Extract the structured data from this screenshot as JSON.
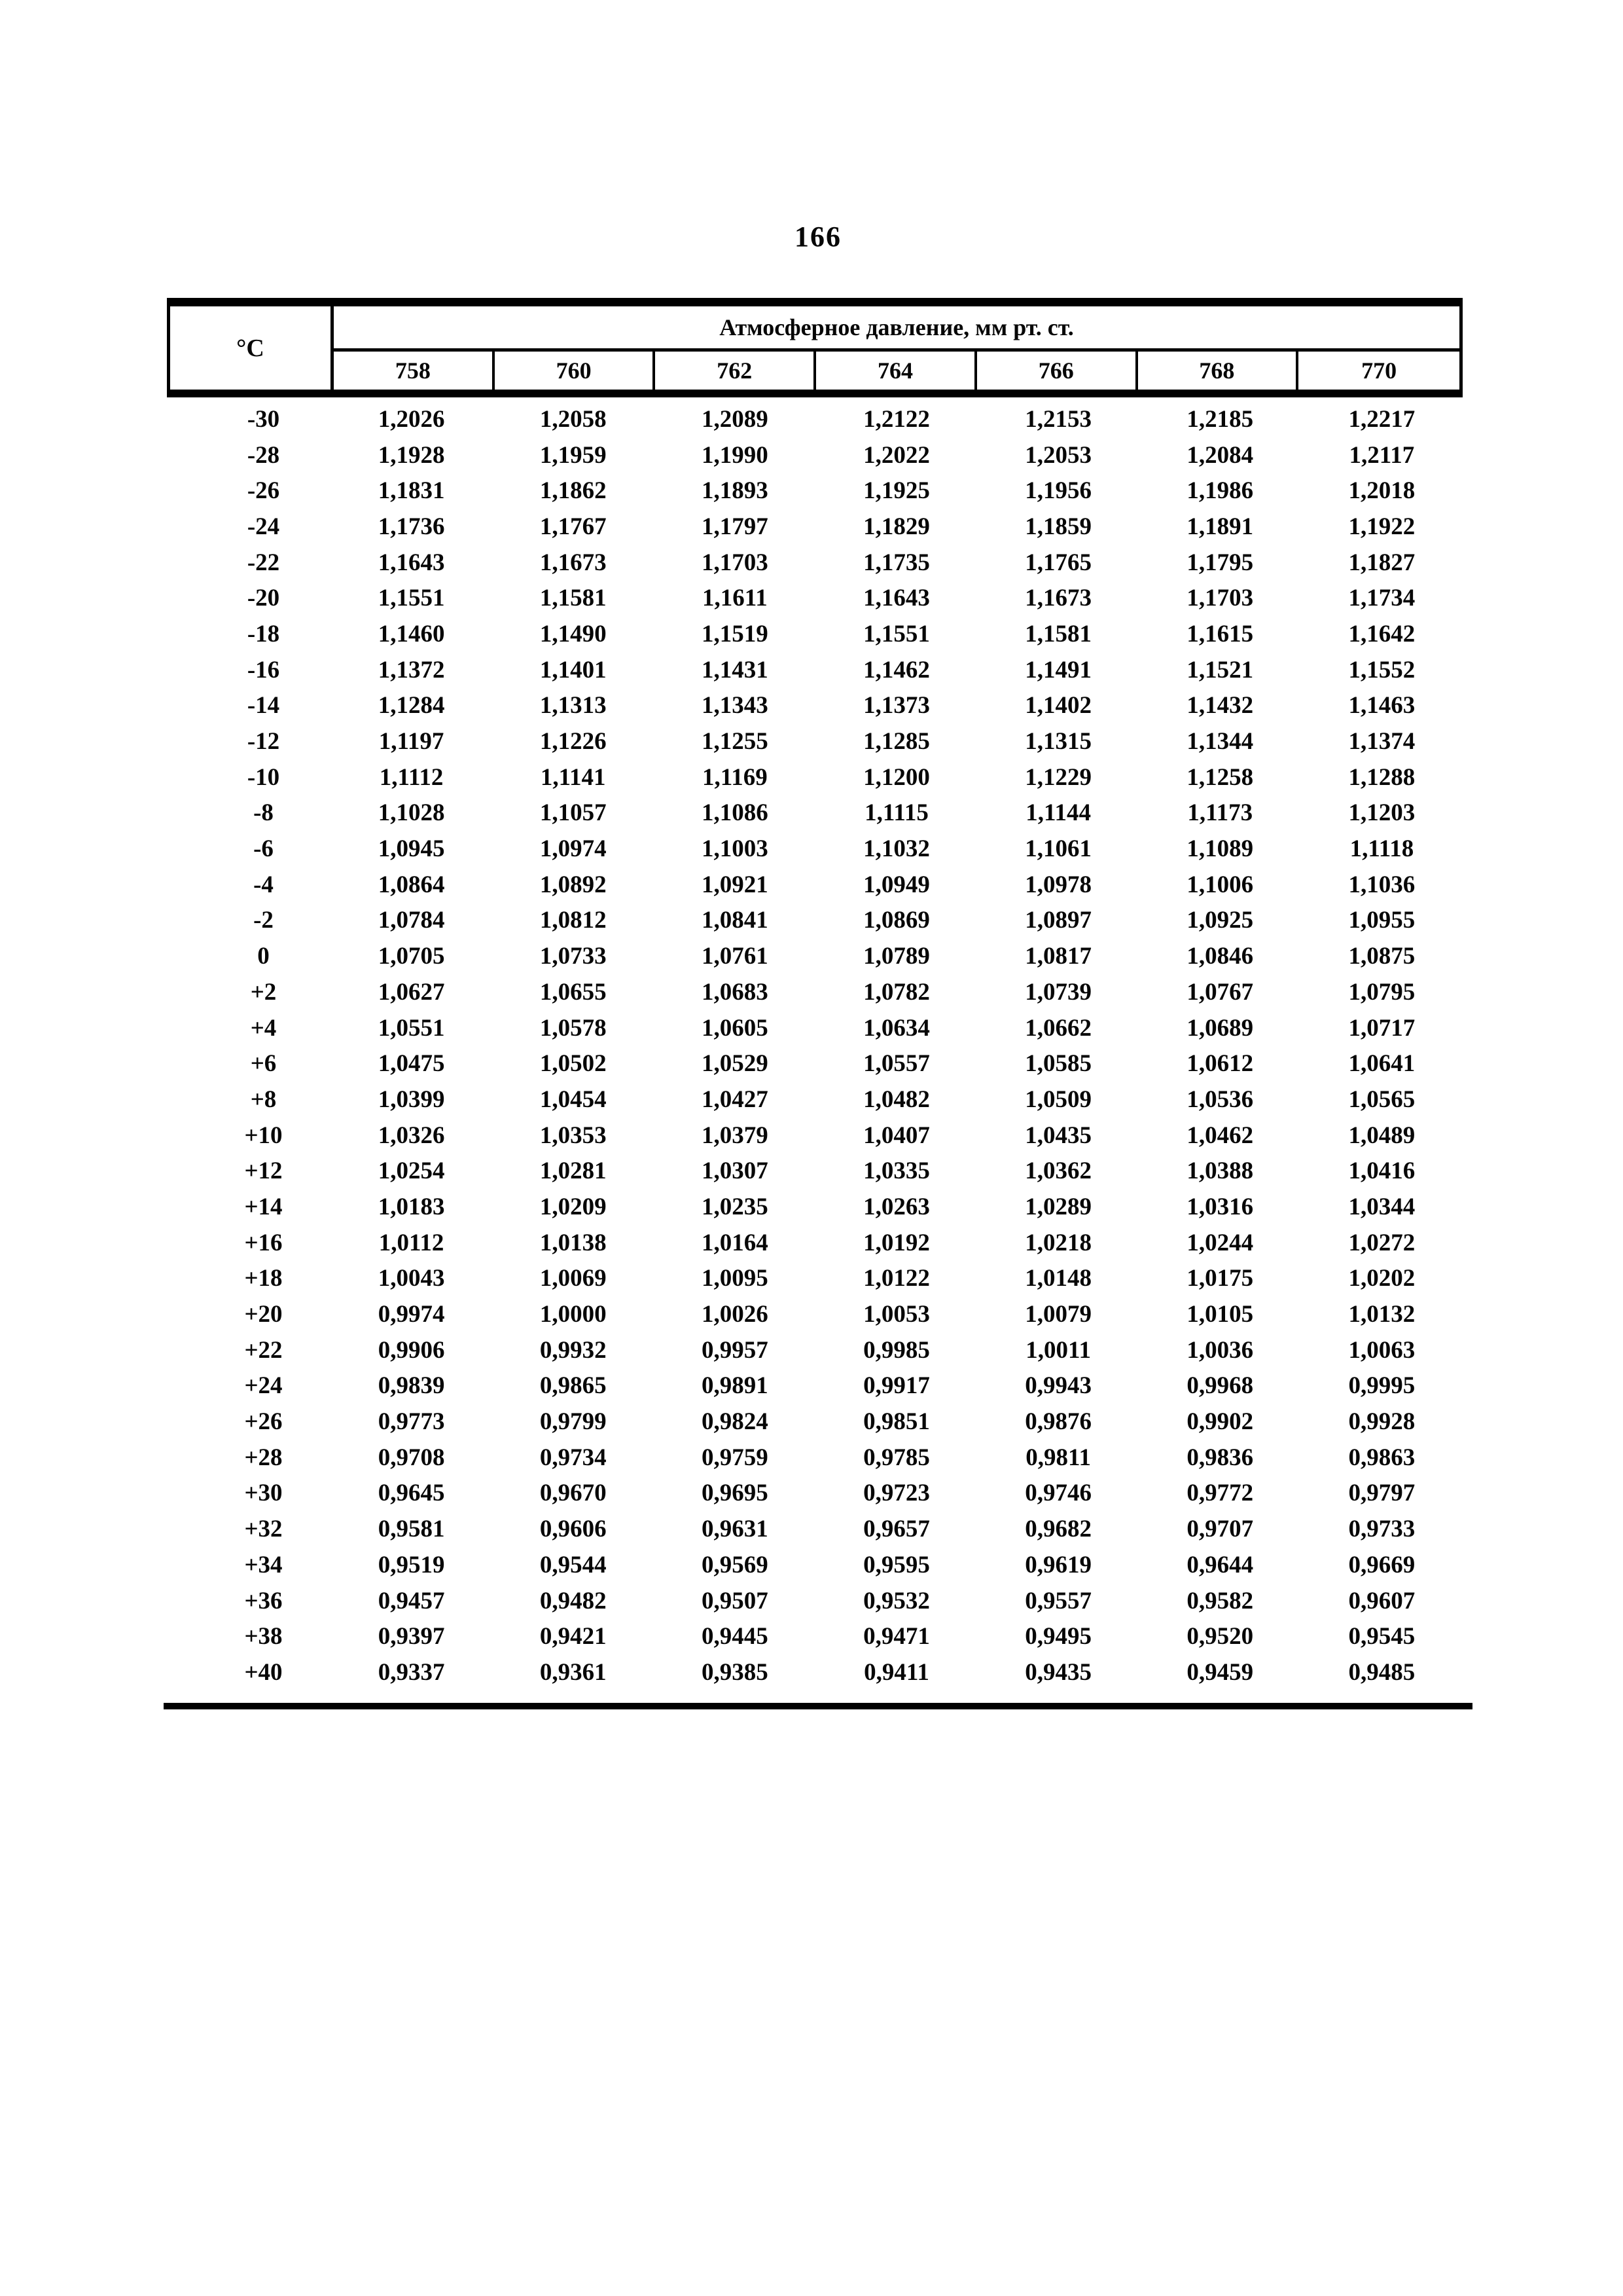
{
  "page_number": "166",
  "table": {
    "temp_header": "°C",
    "pressure_header": "Атмосферное давление, мм рт. ст.",
    "pressure_columns": [
      "758",
      "760",
      "762",
      "764",
      "766",
      "768",
      "770"
    ],
    "rows": [
      {
        "temp": "-30",
        "values": [
          "1,2026",
          "1,2058",
          "1,2089",
          "1,2122",
          "1,2153",
          "1,2185",
          "1,2217"
        ]
      },
      {
        "temp": "-28",
        "values": [
          "1,1928",
          "1,1959",
          "1,1990",
          "1,2022",
          "1,2053",
          "1,2084",
          "1,2117"
        ]
      },
      {
        "temp": "-26",
        "values": [
          "1,1831",
          "1,1862",
          "1,1893",
          "1,1925",
          "1,1956",
          "1,1986",
          "1,2018"
        ]
      },
      {
        "temp": "-24",
        "values": [
          "1,1736",
          "1,1767",
          "1,1797",
          "1,1829",
          "1,1859",
          "1,1891",
          "1,1922"
        ]
      },
      {
        "temp": "-22",
        "values": [
          "1,1643",
          "1,1673",
          "1,1703",
          "1,1735",
          "1,1765",
          "1,1795",
          "1,1827"
        ]
      },
      {
        "temp": "-20",
        "values": [
          "1,1551",
          "1,1581",
          "1,1611",
          "1,1643",
          "1,1673",
          "1,1703",
          "1,1734"
        ]
      },
      {
        "temp": "-18",
        "values": [
          "1,1460",
          "1,1490",
          "1,1519",
          "1,1551",
          "1,1581",
          "1,1615",
          "1,1642"
        ]
      },
      {
        "temp": "-16",
        "values": [
          "1,1372",
          "1,1401",
          "1,1431",
          "1,1462",
          "1,1491",
          "1,1521",
          "1,1552"
        ]
      },
      {
        "temp": "-14",
        "values": [
          "1,1284",
          "1,1313",
          "1,1343",
          "1,1373",
          "1,1402",
          "1,1432",
          "1,1463"
        ]
      },
      {
        "temp": "-12",
        "values": [
          "1,1197",
          "1,1226",
          "1,1255",
          "1,1285",
          "1,1315",
          "1,1344",
          "1,1374"
        ]
      },
      {
        "temp": "-10",
        "values": [
          "1,1112",
          "1,1141",
          "1,1169",
          "1,1200",
          "1,1229",
          "1,1258",
          "1,1288"
        ]
      },
      {
        "temp": "-8",
        "values": [
          "1,1028",
          "1,1057",
          "1,1086",
          "1,1115",
          "1,1144",
          "1,1173",
          "1,1203"
        ]
      },
      {
        "temp": "-6",
        "values": [
          "1,0945",
          "1,0974",
          "1,1003",
          "1,1032",
          "1,1061",
          "1,1089",
          "1,1118"
        ]
      },
      {
        "temp": "-4",
        "values": [
          "1,0864",
          "1,0892",
          "1,0921",
          "1,0949",
          "1,0978",
          "1,1006",
          "1,1036"
        ]
      },
      {
        "temp": "-2",
        "values": [
          "1,0784",
          "1,0812",
          "1,0841",
          "1,0869",
          "1,0897",
          "1,0925",
          "1,0955"
        ]
      },
      {
        "temp": "0",
        "values": [
          "1,0705",
          "1,0733",
          "1,0761",
          "1,0789",
          "1,0817",
          "1,0846",
          "1,0875"
        ]
      },
      {
        "temp": "+2",
        "values": [
          "1,0627",
          "1,0655",
          "1,0683",
          "1,0782",
          "1,0739",
          "1,0767",
          "1,0795"
        ]
      },
      {
        "temp": "+4",
        "values": [
          "1,0551",
          "1,0578",
          "1,0605",
          "1,0634",
          "1,0662",
          "1,0689",
          "1,0717"
        ]
      },
      {
        "temp": "+6",
        "values": [
          "1,0475",
          "1,0502",
          "1,0529",
          "1,0557",
          "1,0585",
          "1,0612",
          "1,0641"
        ]
      },
      {
        "temp": "+8",
        "values": [
          "1,0399",
          "1,0454",
          "1,0427",
          "1,0482",
          "1,0509",
          "1,0536",
          "1,0565"
        ]
      },
      {
        "temp": "+10",
        "values": [
          "1,0326",
          "1,0353",
          "1,0379",
          "1,0407",
          "1,0435",
          "1,0462",
          "1,0489"
        ]
      },
      {
        "temp": "+12",
        "values": [
          "1,0254",
          "1,0281",
          "1,0307",
          "1,0335",
          "1,0362",
          "1,0388",
          "1,0416"
        ]
      },
      {
        "temp": "+14",
        "values": [
          "1,0183",
          "1,0209",
          "1,0235",
          "1,0263",
          "1,0289",
          "1,0316",
          "1,0344"
        ]
      },
      {
        "temp": "+16",
        "values": [
          "1,0112",
          "1,0138",
          "1,0164",
          "1,0192",
          "1,0218",
          "1,0244",
          "1,0272"
        ]
      },
      {
        "temp": "+18",
        "values": [
          "1,0043",
          "1,0069",
          "1,0095",
          "1,0122",
          "1,0148",
          "1,0175",
          "1,0202"
        ]
      },
      {
        "temp": "+20",
        "values": [
          "0,9974",
          "1,0000",
          "1,0026",
          "1,0053",
          "1,0079",
          "1,0105",
          "1,0132"
        ]
      },
      {
        "temp": "+22",
        "values": [
          "0,9906",
          "0,9932",
          "0,9957",
          "0,9985",
          "1,0011",
          "1,0036",
          "1,0063"
        ]
      },
      {
        "temp": "+24",
        "values": [
          "0,9839",
          "0,9865",
          "0,9891",
          "0,9917",
          "0,9943",
          "0,9968",
          "0,9995"
        ]
      },
      {
        "temp": "+26",
        "values": [
          "0,9773",
          "0,9799",
          "0,9824",
          "0,9851",
          "0,9876",
          "0,9902",
          "0,9928"
        ]
      },
      {
        "temp": "+28",
        "values": [
          "0,9708",
          "0,9734",
          "0,9759",
          "0,9785",
          "0,9811",
          "0,9836",
          "0,9863"
        ]
      },
      {
        "temp": "+30",
        "values": [
          "0,9645",
          "0,9670",
          "0,9695",
          "0,9723",
          "0,9746",
          "0,9772",
          "0,9797"
        ]
      },
      {
        "temp": "+32",
        "values": [
          "0,9581",
          "0,9606",
          "0,9631",
          "0,9657",
          "0,9682",
          "0,9707",
          "0,9733"
        ]
      },
      {
        "temp": "+34",
        "values": [
          "0,9519",
          "0,9544",
          "0,9569",
          "0,9595",
          "0,9619",
          "0,9644",
          "0,9669"
        ]
      },
      {
        "temp": "+36",
        "values": [
          "0,9457",
          "0,9482",
          "0,9507",
          "0,9532",
          "0,9557",
          "0,9582",
          "0,9607"
        ]
      },
      {
        "temp": "+38",
        "values": [
          "0,9397",
          "0,9421",
          "0,9445",
          "0,9471",
          "0,9495",
          "0,9520",
          "0,9545"
        ]
      },
      {
        "temp": "+40",
        "values": [
          "0,9337",
          "0,9361",
          "0,9385",
          "0,9411",
          "0,9435",
          "0,9459",
          "0,9485"
        ]
      }
    ]
  }
}
